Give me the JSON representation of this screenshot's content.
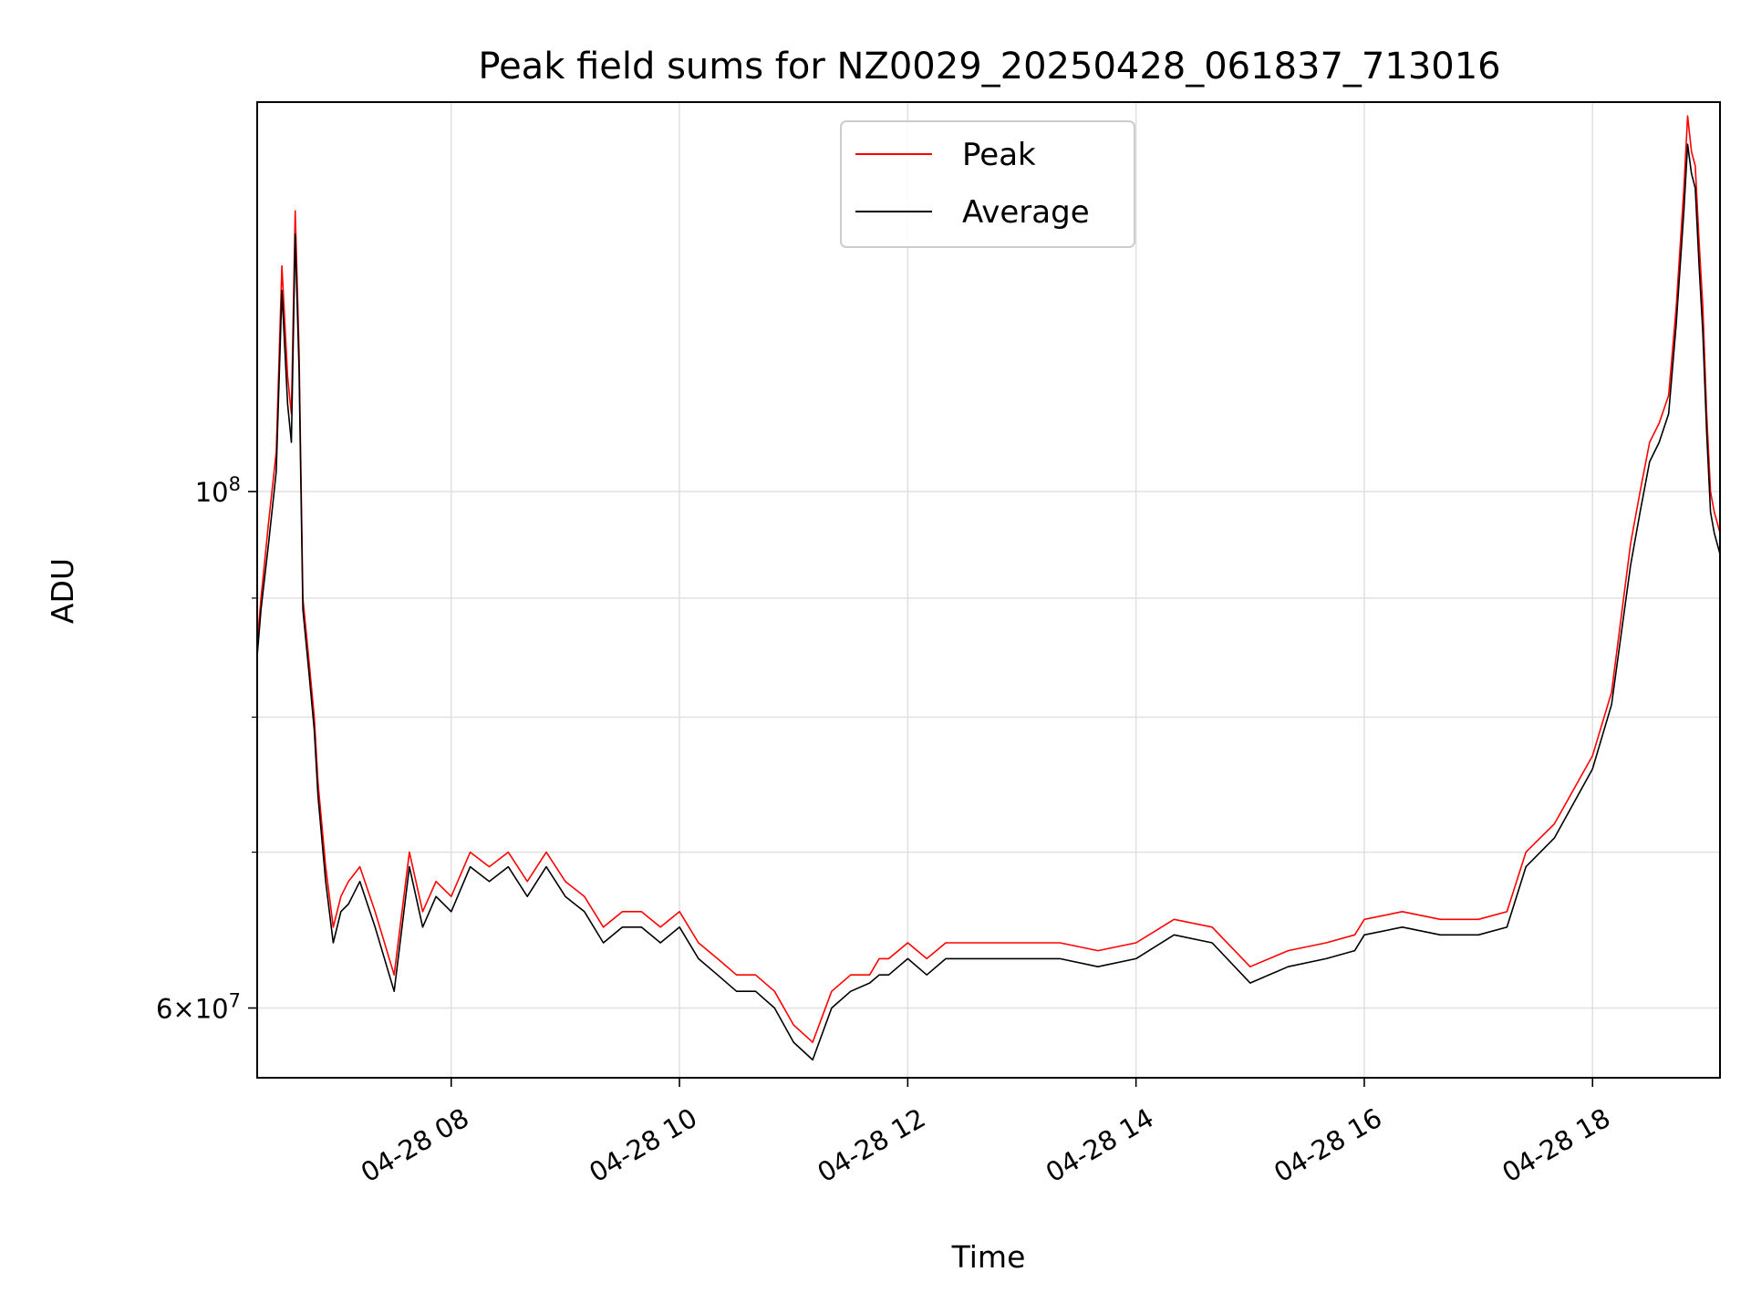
{
  "chart_data": {
    "type": "line",
    "title": "Peak field sums for NZ0029_20250428_061837_713016",
    "xlabel": "Time",
    "ylabel": "ADU",
    "yscale": "log",
    "grid": true,
    "legend_position": "top-center",
    "x_range": [
      "04-28 06:18",
      "04-28 19:07"
    ],
    "ylim": [
      56000000,
      147000000
    ],
    "x_tick_labels": [
      "04-28 08",
      "04-28 10",
      "04-28 12",
      "04-28 14",
      "04-28 16",
      "04-28 18"
    ],
    "x_tick_hours": [
      8,
      10,
      12,
      14,
      16,
      18
    ],
    "y_major_ticks": [
      {
        "value": 100000000,
        "base": "10",
        "exp": "8",
        "coef": ""
      },
      {
        "value": 60000000,
        "base": "10",
        "exp": "7",
        "coef": "6"
      }
    ],
    "y_minor_ticks": [
      70000000,
      80000000,
      90000000
    ],
    "series": [
      {
        "name": "Peak",
        "color": "#ff0000",
        "x": [
          "06:18",
          "06:20",
          "06:24",
          "06:28",
          "06:31",
          "06:34",
          "06:36",
          "06:38",
          "06:40",
          "06:42",
          "06:45",
          "06:48",
          "06:50",
          "06:54",
          "06:58",
          "07:02",
          "07:06",
          "07:12",
          "07:20",
          "07:30",
          "07:38",
          "07:45",
          "07:52",
          "08:00",
          "08:10",
          "08:20",
          "08:30",
          "08:40",
          "08:50",
          "09:00",
          "09:10",
          "09:20",
          "09:30",
          "09:40",
          "09:50",
          "10:00",
          "10:10",
          "10:20",
          "10:30",
          "10:40",
          "10:50",
          "11:00",
          "11:10",
          "11:20",
          "11:30",
          "11:40",
          "11:45",
          "11:50",
          "12:00",
          "12:10",
          "12:20",
          "12:40",
          "13:00",
          "13:20",
          "13:40",
          "14:00",
          "14:20",
          "14:40",
          "15:00",
          "15:20",
          "15:40",
          "15:55",
          "16:00",
          "16:20",
          "16:40",
          "17:00",
          "17:15",
          "17:25",
          "17:40",
          "18:00",
          "18:10",
          "18:20",
          "18:25",
          "18:30",
          "18:35",
          "18:40",
          "18:44",
          "18:48",
          "18:50",
          "18:52",
          "18:54",
          "18:56",
          "18:58",
          "19:00",
          "19:02",
          "19:04",
          "19:07"
        ],
        "values": [
          86000000,
          90000000,
          97000000,
          104000000,
          125000000,
          112000000,
          108000000,
          132000000,
          115000000,
          90000000,
          85000000,
          80000000,
          75000000,
          69000000,
          65000000,
          67000000,
          68000000,
          69000000,
          66000000,
          62000000,
          70000000,
          66000000,
          68000000,
          67000000,
          70000000,
          69000000,
          70000000,
          68000000,
          70000000,
          68000000,
          67000000,
          65000000,
          66000000,
          66000000,
          65000000,
          66000000,
          64000000,
          63000000,
          62000000,
          62000000,
          61000000,
          59000000,
          58000000,
          61000000,
          62000000,
          62000000,
          63000000,
          63000000,
          64000000,
          63000000,
          64000000,
          64000000,
          64000000,
          64000000,
          63500000,
          64000000,
          65500000,
          65000000,
          62500000,
          63500000,
          64000000,
          64500000,
          65500000,
          66000000,
          65500000,
          65500000,
          66000000,
          70000000,
          72000000,
          77000000,
          82000000,
          95000000,
          100000000,
          105000000,
          107000000,
          110000000,
          120000000,
          135000000,
          145000000,
          140000000,
          138000000,
          128000000,
          120000000,
          108000000,
          100000000,
          98000000,
          96000000
        ]
      },
      {
        "name": "Average",
        "color": "#000000",
        "x": [
          "06:18",
          "06:20",
          "06:24",
          "06:28",
          "06:31",
          "06:34",
          "06:36",
          "06:38",
          "06:40",
          "06:42",
          "06:45",
          "06:48",
          "06:50",
          "06:54",
          "06:58",
          "07:02",
          "07:06",
          "07:12",
          "07:20",
          "07:30",
          "07:38",
          "07:45",
          "07:52",
          "08:00",
          "08:10",
          "08:20",
          "08:30",
          "08:40",
          "08:50",
          "09:00",
          "09:10",
          "09:20",
          "09:30",
          "09:40",
          "09:50",
          "10:00",
          "10:10",
          "10:20",
          "10:30",
          "10:40",
          "10:50",
          "11:00",
          "11:10",
          "11:20",
          "11:30",
          "11:40",
          "11:45",
          "11:50",
          "12:00",
          "12:10",
          "12:20",
          "12:40",
          "13:00",
          "13:20",
          "13:40",
          "14:00",
          "14:20",
          "14:40",
          "15:00",
          "15:20",
          "15:40",
          "15:55",
          "16:00",
          "16:20",
          "16:40",
          "17:00",
          "17:15",
          "17:25",
          "17:40",
          "18:00",
          "18:10",
          "18:20",
          "18:25",
          "18:30",
          "18:35",
          "18:40",
          "18:44",
          "18:48",
          "18:50",
          "18:52",
          "18:54",
          "18:56",
          "18:58",
          "19:00",
          "19:02",
          "19:04",
          "19:07"
        ],
        "values": [
          85000000,
          89000000,
          95000000,
          102000000,
          122000000,
          109000000,
          105000000,
          129000000,
          113000000,
          89000000,
          84000000,
          79000000,
          74000000,
          68000000,
          64000000,
          66000000,
          66500000,
          68000000,
          65000000,
          61000000,
          69000000,
          65000000,
          67000000,
          66000000,
          69000000,
          68000000,
          69000000,
          67000000,
          69000000,
          67000000,
          66000000,
          64000000,
          65000000,
          65000000,
          64000000,
          65000000,
          63000000,
          62000000,
          61000000,
          61000000,
          60000000,
          58000000,
          57000000,
          60000000,
          61000000,
          61500000,
          62000000,
          62000000,
          63000000,
          62000000,
          63000000,
          63000000,
          63000000,
          63000000,
          62500000,
          63000000,
          64500000,
          64000000,
          61500000,
          62500000,
          63000000,
          63500000,
          64500000,
          65000000,
          64500000,
          64500000,
          65000000,
          69000000,
          71000000,
          76000000,
          81000000,
          93000000,
          98000000,
          103000000,
          105000000,
          108000000,
          118000000,
          132000000,
          141000000,
          137000000,
          135000000,
          125000000,
          117000000,
          106000000,
          98000000,
          96000000,
          94000000
        ]
      }
    ]
  }
}
